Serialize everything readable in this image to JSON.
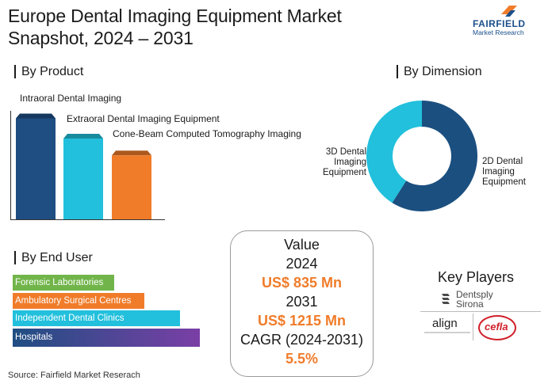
{
  "header": {
    "title_line1": "Europe Dental Imaging Equipment Market",
    "title_line2": "Snapshot, 2024 – 2031",
    "logo_name": "FAIRFIELD",
    "logo_sub": "Market Research"
  },
  "colors": {
    "navy": "#1f4e82",
    "cyan": "#22c0dc",
    "orange": "#f07c2a",
    "green": "#71b54a",
    "purple": "#7a3fa6",
    "value_orange": "#f07c2a"
  },
  "by_product": {
    "heading": "By Product",
    "chart_data": {
      "type": "bar",
      "categories": [
        "Intraoral Dental Imaging",
        "Extraoral Dental Imaging Equipment",
        "Cone-Beam Computed Tomography Imaging"
      ],
      "values": [
        3,
        2.4,
        1.9
      ],
      "colors": [
        "#1f4e82",
        "#22c0dc",
        "#f07c2a"
      ],
      "ylim": [
        0,
        3.2
      ]
    }
  },
  "by_dimension": {
    "heading": "By Dimension",
    "chart_data": {
      "type": "pie",
      "donut": true,
      "labels": [
        "2D Dental Imaging Equipment",
        "3D Dental Imaging Equipment"
      ],
      "label_lines": [
        [
          "2D Dental",
          "Imaging",
          "Equipment"
        ],
        [
          "3D Dental",
          "Imaging",
          "Equipment"
        ]
      ],
      "values": [
        0.59,
        0.41
      ],
      "colors": [
        "#1b4f80",
        "#22c0dc"
      ]
    }
  },
  "by_end_user": {
    "heading": "By End User",
    "chart_data": {
      "type": "bar",
      "orientation": "horizontal",
      "categories": [
        "Forensic Laboratories",
        "Ambulatory Surgical Centres",
        "Independent Dental Clinics",
        "Hospitals"
      ],
      "values": [
        1.0,
        1.3,
        1.65,
        1.85
      ],
      "colors": [
        "#71b54a",
        "#f07c2a",
        "#22c0dc",
        "#1f4e82"
      ]
    }
  },
  "value_box": {
    "value_label": "Value",
    "year_2024": "2024",
    "value_2024": "US$ 835 Mn",
    "year_2031": "2031",
    "value_2031": "US$ 1215 Mn",
    "cagr_label": "CAGR (2024-2031)",
    "cagr_value": "5.5%"
  },
  "key_players": {
    "heading": "Key Players",
    "players": [
      "Dentsply Sirona",
      "align",
      "cefla"
    ],
    "dentsply_line1": "Dentsply",
    "dentsply_line2": "Sirona"
  },
  "source": "Source: Fairfield Market Reserach"
}
